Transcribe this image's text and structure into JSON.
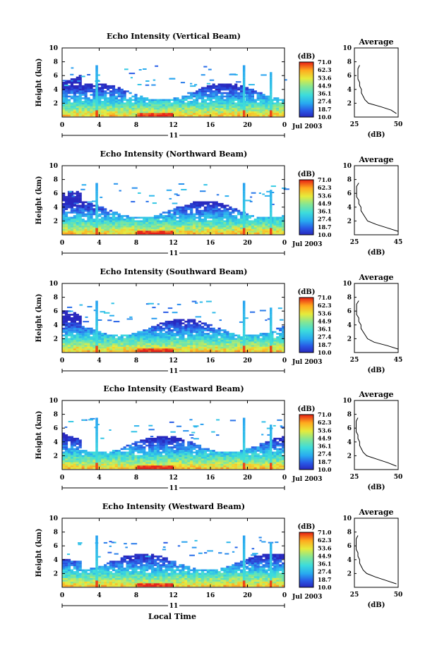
{
  "figure": {
    "x_axis_title": "Local Time",
    "date_label": "Jul 2003",
    "day_label": "11",
    "y_axis_label": "Height (km)",
    "colorbar_unit": "(dB)",
    "colorbar_ticks": [
      "71.0",
      "62.3",
      "53.6",
      "44.9",
      "36.1",
      "27.4",
      "18.7",
      "10.0"
    ],
    "colorbar_colors": [
      "#ff0000",
      "#ff8000",
      "#ffff00",
      "#80ff80",
      "#00ffff",
      "#0080ff",
      "#0000b0"
    ],
    "average_title": "Average",
    "average_xlabel": "(dB)"
  },
  "chart_data": [
    {
      "type": "heatmap",
      "title": "Echo Intensity (Vertical Beam)",
      "xlabel": "Local Time",
      "ylabel": "Height (km)",
      "xlim": [
        0,
        24
      ],
      "ylim": [
        0,
        10
      ],
      "x_ticks": [
        "0",
        "4",
        "8",
        "12",
        "16",
        "20",
        "0"
      ],
      "y_ticks": [
        "2",
        "4",
        "6",
        "8",
        "10"
      ],
      "colorbar": {
        "unit": "(dB)",
        "range": [
          10.0,
          71.0
        ]
      },
      "average_profile": {
        "title": "Average",
        "xlabel": "(dB)",
        "xlim": [
          25,
          50
        ],
        "x_ticks": [
          "25",
          "50"
        ],
        "heights": [
          0.5,
          1.0,
          1.5,
          2.0,
          2.5,
          3.0,
          3.5,
          4.0,
          4.5,
          5.0,
          5.5,
          6.0,
          6.5,
          7.0,
          7.5
        ],
        "values": [
          49,
          46,
          40,
          33,
          31,
          30,
          29,
          29,
          28,
          28,
          27,
          27,
          27,
          27,
          28
        ]
      }
    },
    {
      "type": "heatmap",
      "title": "Echo Intensity (Northward Beam)",
      "xlabel": "Local Time",
      "ylabel": "Height (km)",
      "xlim": [
        0,
        24
      ],
      "ylim": [
        0,
        10
      ],
      "x_ticks": [
        "0",
        "4",
        "8",
        "12",
        "16",
        "20",
        "0"
      ],
      "y_ticks": [
        "2",
        "4",
        "6",
        "8",
        "10"
      ],
      "colorbar": {
        "unit": "(dB)",
        "range": [
          10.0,
          71.0
        ]
      },
      "average_profile": {
        "title": "Average",
        "xlabel": "(dB)",
        "xlim": [
          25,
          45
        ],
        "x_ticks": [
          "25",
          "45"
        ],
        "heights": [
          0.5,
          1.0,
          1.5,
          2.0,
          2.5,
          3.0,
          3.5,
          4.0,
          4.5,
          5.0,
          5.5,
          6.0,
          6.5,
          7.0,
          7.5
        ],
        "values": [
          45,
          40,
          35,
          31,
          30,
          29,
          28,
          28,
          27,
          27,
          26,
          26,
          26,
          26,
          27
        ]
      }
    },
    {
      "type": "heatmap",
      "title": "Echo Intensity (Southward Beam)",
      "xlabel": "Local Time",
      "ylabel": "Height (km)",
      "xlim": [
        0,
        24
      ],
      "ylim": [
        0,
        10
      ],
      "x_ticks": [
        "0",
        "4",
        "8",
        "12",
        "16",
        "20",
        "0"
      ],
      "y_ticks": [
        "2",
        "4",
        "6",
        "8",
        "10"
      ],
      "colorbar": {
        "unit": "(dB)",
        "range": [
          10.0,
          71.0
        ]
      },
      "average_profile": {
        "title": "Average",
        "xlabel": "(dB)",
        "xlim": [
          25,
          45
        ],
        "x_ticks": [
          "25",
          "45"
        ],
        "heights": [
          0.5,
          1.0,
          1.5,
          2.0,
          2.5,
          3.0,
          3.5,
          4.0,
          4.5,
          5.0,
          5.5,
          6.0,
          6.5,
          7.0,
          7.5
        ],
        "values": [
          45,
          40,
          34,
          31,
          30,
          29,
          28,
          28,
          27,
          27,
          26,
          26,
          26,
          26,
          27
        ]
      }
    },
    {
      "type": "heatmap",
      "title": "Echo Intensity (Eastward Beam)",
      "xlabel": "Local Time",
      "ylabel": "Height (km)",
      "xlim": [
        0,
        24
      ],
      "ylim": [
        0,
        10
      ],
      "x_ticks": [
        "0",
        "4",
        "8",
        "12",
        "16",
        "20",
        "0"
      ],
      "y_ticks": [
        "2",
        "4",
        "6",
        "8",
        "10"
      ],
      "colorbar": {
        "unit": "(dB)",
        "range": [
          10.0,
          71.0
        ]
      },
      "average_profile": {
        "title": "Average",
        "xlabel": "(dB)",
        "xlim": [
          25,
          50
        ],
        "x_ticks": [
          "25",
          "50"
        ],
        "heights": [
          0.5,
          1.0,
          1.5,
          2.0,
          2.5,
          3.0,
          3.5,
          4.0,
          4.5,
          5.0,
          5.5,
          6.0,
          6.5,
          7.0,
          7.5
        ],
        "values": [
          49,
          44,
          38,
          32,
          30,
          29,
          28,
          28,
          27,
          27,
          26,
          26,
          26,
          26,
          27
        ]
      }
    },
    {
      "type": "heatmap",
      "title": "Echo Intensity (Westward Beam)",
      "xlabel": "Local Time",
      "ylabel": "Height (km)",
      "xlim": [
        0,
        24
      ],
      "ylim": [
        0,
        10
      ],
      "x_ticks": [
        "0",
        "4",
        "8",
        "12",
        "16",
        "20",
        "0"
      ],
      "y_ticks": [
        "2",
        "4",
        "6",
        "8",
        "10"
      ],
      "colorbar": {
        "unit": "(dB)",
        "range": [
          10.0,
          71.0
        ]
      },
      "average_profile": {
        "title": "Average",
        "xlabel": "(dB)",
        "xlim": [
          25,
          50
        ],
        "x_ticks": [
          "25",
          "50"
        ],
        "heights": [
          0.5,
          1.0,
          1.5,
          2.0,
          2.5,
          3.0,
          3.5,
          4.0,
          4.5,
          5.0,
          5.5,
          6.0,
          6.5,
          7.0,
          7.5
        ],
        "values": [
          49,
          43,
          37,
          32,
          30,
          29,
          28,
          28,
          27,
          27,
          26,
          26,
          26,
          26,
          27
        ]
      }
    }
  ]
}
